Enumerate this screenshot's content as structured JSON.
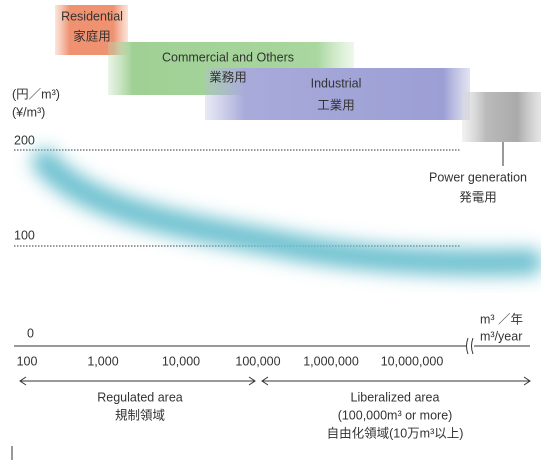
{
  "bands": [
    {
      "label_en": "Residential",
      "label_ja": "家庭用"
    },
    {
      "label_en": "Commercial and Others",
      "label_ja": "業務用"
    },
    {
      "label_en": "Industrial",
      "label_ja": "工業用"
    },
    {
      "label_en": "Power generation",
      "label_ja": "発電用"
    }
  ],
  "y_axis": {
    "unit_ja": "(円／m³)",
    "unit_en": "(¥/m³)",
    "ticks": [
      "200",
      "100",
      "0"
    ]
  },
  "x_axis": {
    "unit_ja": "m³ ／年",
    "unit_en": "m³/year",
    "ticks": [
      "100",
      "1,000",
      "10,000",
      "100,000",
      "1,000,000",
      "10,000,000"
    ]
  },
  "regions": [
    {
      "lines": [
        "Regulated area",
        "規制領域"
      ]
    },
    {
      "lines": [
        "Liberalized area",
        "(100,000m³ or more)",
        "自由化領域(10万m³以上)"
      ]
    }
  ]
}
